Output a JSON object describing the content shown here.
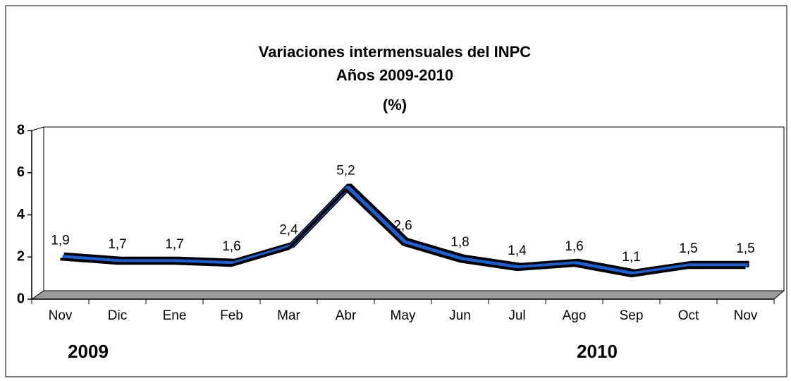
{
  "chart_data": {
    "type": "line",
    "title": [
      "Variaciones intermensuales del INPC",
      "Años 2009-2010",
      "(%)"
    ],
    "categories": [
      "Nov",
      "Dic",
      "Ene",
      "Feb",
      "Mar",
      "Abr",
      "May",
      "Jun",
      "Jul",
      "Ago",
      "Sep",
      "Oct",
      "Nov"
    ],
    "values": [
      1.9,
      1.7,
      1.7,
      1.6,
      2.4,
      5.2,
      2.6,
      1.8,
      1.4,
      1.6,
      1.1,
      1.5,
      1.5
    ],
    "value_labels": [
      "1,9",
      "1,7",
      "1,7",
      "1,6",
      "2,4",
      "5,2",
      "2,6",
      "1,8",
      "1,4",
      "1,6",
      "1,1",
      "1,5",
      "1,5"
    ],
    "color": "#1660d8",
    "ylim": [
      0,
      8
    ],
    "yticks": [
      0,
      2,
      4,
      6,
      8
    ],
    "annotations": [
      {
        "text": "2009"
      },
      {
        "text": "2010"
      }
    ]
  }
}
